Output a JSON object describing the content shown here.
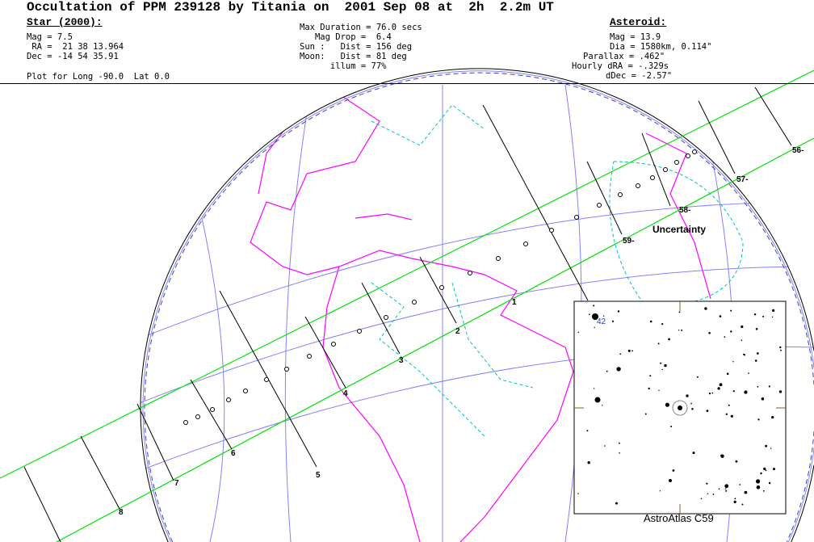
{
  "title": "Occultation of PPM 239128 by Titania on  2001 Sep 08 at  2h  2.2m UT",
  "star": {
    "heading": "Star (2000):",
    "mag": "Mag = 7.5",
    "ra": " RA =  21 38 13.964",
    "dec": "Dec = -14 54 35.91"
  },
  "plot_for": "Plot for Long -90.0  Lat 0.0",
  "event": {
    "max_duration": "Max Duration = 76.0 secs",
    "mag_drop": "   Mag Drop =  6.4",
    "sun": "Sun :   Dist = 156 deg",
    "moon": "Moon:   Dist = 81 deg",
    "illum": "      illum = 77%"
  },
  "asteroid": {
    "heading": "Asteroid:",
    "mag": "Mag = 13.9",
    "dia": "Dia = 1580km, 0.114\"",
    "parallax": "Parallax = .462\"",
    "hourly_dra": "Hourly dRA = -.329s",
    "ddec": "dDec = -2.57\""
  },
  "map": {
    "uncertainty_label": "Uncertainty",
    "path_labels": [
      "1",
      "2",
      "3",
      "4",
      "5",
      "6",
      "7",
      "8"
    ],
    "latitude_labels": [
      "56-",
      "57-",
      "58-",
      "59-"
    ],
    "colors": {
      "path": "#00e000",
      "coast": "#ff00ff",
      "borders": "#00c0c0",
      "grid": "#8080ff"
    }
  },
  "inset": {
    "label": "AstroAtlas C59",
    "star_number": "42"
  }
}
